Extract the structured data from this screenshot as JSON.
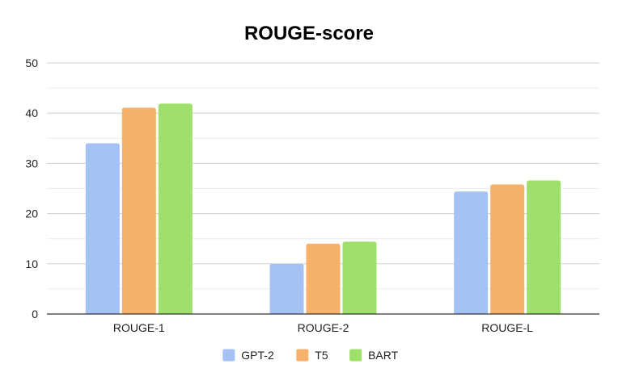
{
  "chart_data": {
    "type": "bar",
    "title": "ROUGE-score",
    "xlabel": "",
    "ylabel": "",
    "categories": [
      "ROUGE-1",
      "ROUGE-2",
      "ROUGE-L"
    ],
    "series": [
      {
        "name": "GPT-2",
        "values": [
          34.0,
          10.0,
          24.4
        ],
        "color": "#a4c2f4"
      },
      {
        "name": "T5",
        "values": [
          41.1,
          14.0,
          25.8
        ],
        "color": "#f6b26b"
      },
      {
        "name": "BART",
        "values": [
          41.9,
          14.4,
          26.6
        ],
        "color": "#9ee06b"
      }
    ],
    "ylim": [
      0,
      50
    ],
    "yticks": [
      0,
      10,
      20,
      30,
      40,
      50
    ],
    "grid": true,
    "legend_position": "bottom"
  }
}
